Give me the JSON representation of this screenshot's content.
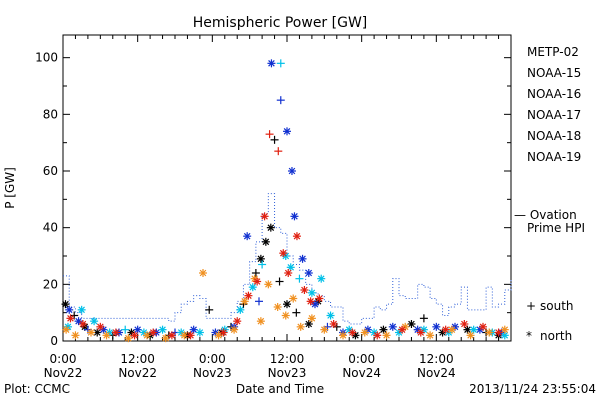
{
  "chart_data": {
    "type": "scatter",
    "title": "Hemispheric Power [GW]",
    "xlabel": "Date and Time",
    "ylabel": "P [GW]",
    "credit": "Plot: CCMC",
    "timestamp": "2013/11/24 23:55:04",
    "x_unit": "hours from 2013-11-22 00:00",
    "xlim": [
      0,
      72
    ],
    "ylim": [
      0,
      108
    ],
    "x_ticks": [
      {
        "x": 0,
        "line1": "0:00",
        "line2": "Nov22"
      },
      {
        "x": 12,
        "line1": "12:00",
        "line2": "Nov22"
      },
      {
        "x": 24,
        "line1": "0:00",
        "line2": "Nov23"
      },
      {
        "x": 36,
        "line1": "12:00",
        "line2": "Nov23"
      },
      {
        "x": 48,
        "line1": "0:00",
        "line2": "Nov24"
      },
      {
        "x": 60,
        "line1": "12:00",
        "line2": "Nov24"
      }
    ],
    "y_ticks": [
      0,
      20,
      40,
      60,
      80,
      100
    ],
    "legend_position": "right",
    "series": [
      {
        "name": "METP-02",
        "color": "#000000",
        "points": [
          {
            "x": 0.4,
            "y": 13,
            "m": "*"
          },
          {
            "x": 1.8,
            "y": 9,
            "m": "+"
          },
          {
            "x": 3.5,
            "y": 5,
            "m": "*"
          },
          {
            "x": 5.5,
            "y": 3,
            "m": "*"
          },
          {
            "x": 8,
            "y": 2,
            "m": "+"
          },
          {
            "x": 11,
            "y": 3,
            "m": "*"
          },
          {
            "x": 14,
            "y": 2,
            "m": "*"
          },
          {
            "x": 17,
            "y": 2,
            "m": "+"
          },
          {
            "x": 20,
            "y": 2,
            "m": "*"
          },
          {
            "x": 23.5,
            "y": 11,
            "m": "+"
          },
          {
            "x": 25.5,
            "y": 3,
            "m": "*"
          },
          {
            "x": 27,
            "y": 5,
            "m": "+"
          },
          {
            "x": 29,
            "y": 13,
            "m": "+"
          },
          {
            "x": 31,
            "y": 24,
            "m": "+"
          },
          {
            "x": 31.8,
            "y": 29,
            "m": "*"
          },
          {
            "x": 32.6,
            "y": 35,
            "m": "*"
          },
          {
            "x": 33.4,
            "y": 40,
            "m": "*"
          },
          {
            "x": 34,
            "y": 71,
            "m": "+"
          },
          {
            "x": 34.8,
            "y": 21,
            "m": "+"
          },
          {
            "x": 36,
            "y": 13,
            "m": "*"
          },
          {
            "x": 37.5,
            "y": 10,
            "m": "+"
          },
          {
            "x": 39.5,
            "y": 6,
            "m": "*"
          },
          {
            "x": 41,
            "y": 14,
            "m": "*"
          },
          {
            "x": 44,
            "y": 5,
            "m": "+"
          },
          {
            "x": 47,
            "y": 2,
            "m": "*"
          },
          {
            "x": 51.5,
            "y": 4,
            "m": "*"
          },
          {
            "x": 56,
            "y": 6,
            "m": "*"
          },
          {
            "x": 58,
            "y": 8,
            "m": "+"
          },
          {
            "x": 61,
            "y": 3,
            "m": "*"
          },
          {
            "x": 65,
            "y": 4,
            "m": "*"
          },
          {
            "x": 68,
            "y": 3,
            "m": "+"
          },
          {
            "x": 70,
            "y": 2,
            "m": "*"
          }
        ]
      },
      {
        "name": "NOAA-15",
        "color": "#1030d0",
        "points": [
          {
            "x": 1,
            "y": 11,
            "m": "*"
          },
          {
            "x": 2.5,
            "y": 7,
            "m": "*"
          },
          {
            "x": 4,
            "y": 4,
            "m": "+"
          },
          {
            "x": 6.5,
            "y": 4,
            "m": "*"
          },
          {
            "x": 9,
            "y": 3,
            "m": "*"
          },
          {
            "x": 12,
            "y": 4,
            "m": "*"
          },
          {
            "x": 15,
            "y": 3,
            "m": "*"
          },
          {
            "x": 18,
            "y": 3,
            "m": "+"
          },
          {
            "x": 21,
            "y": 4,
            "m": "*"
          },
          {
            "x": 24.5,
            "y": 3,
            "m": "*"
          },
          {
            "x": 27.5,
            "y": 5,
            "m": "*"
          },
          {
            "x": 29.6,
            "y": 37,
            "m": "*"
          },
          {
            "x": 31.5,
            "y": 14,
            "m": "+"
          },
          {
            "x": 33.5,
            "y": 98,
            "m": "*"
          },
          {
            "x": 35,
            "y": 85,
            "m": "+"
          },
          {
            "x": 36,
            "y": 74,
            "m": "*"
          },
          {
            "x": 36.8,
            "y": 60,
            "m": "*"
          },
          {
            "x": 37.2,
            "y": 44,
            "m": "*"
          },
          {
            "x": 38.5,
            "y": 29,
            "m": "*"
          },
          {
            "x": 39.5,
            "y": 24,
            "m": "*"
          },
          {
            "x": 40.5,
            "y": 13,
            "m": "*"
          },
          {
            "x": 42.5,
            "y": 5,
            "m": "+"
          },
          {
            "x": 45,
            "y": 3,
            "m": "*"
          },
          {
            "x": 49,
            "y": 4,
            "m": "*"
          },
          {
            "x": 53,
            "y": 5,
            "m": "*"
          },
          {
            "x": 57,
            "y": 4,
            "m": "*"
          },
          {
            "x": 60,
            "y": 5,
            "m": "*"
          },
          {
            "x": 63,
            "y": 5,
            "m": "*"
          },
          {
            "x": 67,
            "y": 4,
            "m": "*"
          },
          {
            "x": 70.5,
            "y": 3,
            "m": "*"
          }
        ]
      },
      {
        "name": "NOAA-16",
        "color": "#00c0e8",
        "points": [
          {
            "x": 0.8,
            "y": 5,
            "m": "*"
          },
          {
            "x": 3,
            "y": 11,
            "m": "*"
          },
          {
            "x": 5,
            "y": 7,
            "m": "*"
          },
          {
            "x": 7.5,
            "y": 3,
            "m": "*"
          },
          {
            "x": 10,
            "y": 4,
            "m": "+"
          },
          {
            "x": 13,
            "y": 3,
            "m": "*"
          },
          {
            "x": 16,
            "y": 4,
            "m": "*"
          },
          {
            "x": 19,
            "y": 3,
            "m": "*"
          },
          {
            "x": 22,
            "y": 3,
            "m": "*"
          },
          {
            "x": 26,
            "y": 4,
            "m": "*"
          },
          {
            "x": 28.5,
            "y": 11,
            "m": "*"
          },
          {
            "x": 30.5,
            "y": 19,
            "m": "*"
          },
          {
            "x": 32,
            "y": 27,
            "m": "+"
          },
          {
            "x": 35,
            "y": 98,
            "m": "+"
          },
          {
            "x": 35.8,
            "y": 30,
            "m": "*"
          },
          {
            "x": 36.6,
            "y": 26,
            "m": "*"
          },
          {
            "x": 38,
            "y": 22,
            "m": "+"
          },
          {
            "x": 40,
            "y": 17,
            "m": "*"
          },
          {
            "x": 41.5,
            "y": 22,
            "m": "*"
          },
          {
            "x": 43,
            "y": 9,
            "m": "*"
          },
          {
            "x": 46,
            "y": 4,
            "m": "*"
          },
          {
            "x": 50,
            "y": 3,
            "m": "*"
          },
          {
            "x": 54,
            "y": 3,
            "m": "*"
          },
          {
            "x": 58,
            "y": 4,
            "m": "*"
          },
          {
            "x": 62,
            "y": 3,
            "m": "*"
          },
          {
            "x": 66,
            "y": 4,
            "m": "*"
          },
          {
            "x": 69,
            "y": 3,
            "m": "*"
          },
          {
            "x": 71,
            "y": 2,
            "m": "*"
          }
        ]
      },
      {
        "name": "NOAA-17",
        "color": "#20e070",
        "points": []
      },
      {
        "name": "NOAA-18",
        "color": "#f09020",
        "points": [
          {
            "x": 0.5,
            "y": 4,
            "m": "*"
          },
          {
            "x": 2,
            "y": 2,
            "m": "*"
          },
          {
            "x": 4.5,
            "y": 3,
            "m": "*"
          },
          {
            "x": 7,
            "y": 2,
            "m": "*"
          },
          {
            "x": 10.5,
            "y": 1,
            "m": "*"
          },
          {
            "x": 13.5,
            "y": 2,
            "m": "*"
          },
          {
            "x": 16.5,
            "y": 1,
            "m": "*"
          },
          {
            "x": 19.5,
            "y": 2,
            "m": "*"
          },
          {
            "x": 22.5,
            "y": 24,
            "m": "*"
          },
          {
            "x": 25,
            "y": 2,
            "m": "*"
          },
          {
            "x": 27.5,
            "y": 4,
            "m": "*"
          },
          {
            "x": 29.2,
            "y": 14,
            "m": "*"
          },
          {
            "x": 30.8,
            "y": 22,
            "m": "*"
          },
          {
            "x": 31.8,
            "y": 7,
            "m": "*"
          },
          {
            "x": 33,
            "y": 20,
            "m": "*"
          },
          {
            "x": 34.5,
            "y": 12,
            "m": "*"
          },
          {
            "x": 35.8,
            "y": 9,
            "m": "*"
          },
          {
            "x": 37,
            "y": 15,
            "m": "*"
          },
          {
            "x": 38.2,
            "y": 5,
            "m": "*"
          },
          {
            "x": 40,
            "y": 8,
            "m": "*"
          },
          {
            "x": 42,
            "y": 4,
            "m": "*"
          },
          {
            "x": 45,
            "y": 2,
            "m": "*"
          },
          {
            "x": 48.5,
            "y": 3,
            "m": "*"
          },
          {
            "x": 52,
            "y": 2,
            "m": "*"
          },
          {
            "x": 55,
            "y": 5,
            "m": "*"
          },
          {
            "x": 59,
            "y": 2,
            "m": "*"
          },
          {
            "x": 62.5,
            "y": 4,
            "m": "*"
          },
          {
            "x": 65.5,
            "y": 2,
            "m": "*"
          },
          {
            "x": 68.5,
            "y": 3,
            "m": "*"
          },
          {
            "x": 71,
            "y": 4,
            "m": "*"
          }
        ]
      },
      {
        "name": "NOAA-19",
        "color": "#e02010",
        "points": [
          {
            "x": 1.2,
            "y": 8,
            "m": "*"
          },
          {
            "x": 3.2,
            "y": 6,
            "m": "*"
          },
          {
            "x": 6,
            "y": 5,
            "m": "*"
          },
          {
            "x": 8.5,
            "y": 3,
            "m": "*"
          },
          {
            "x": 11.5,
            "y": 2,
            "m": "*"
          },
          {
            "x": 14.5,
            "y": 3,
            "m": "*"
          },
          {
            "x": 17.5,
            "y": 2,
            "m": "*"
          },
          {
            "x": 20.5,
            "y": 2,
            "m": "*"
          },
          {
            "x": 25.8,
            "y": 3,
            "m": "*"
          },
          {
            "x": 28,
            "y": 7,
            "m": "*"
          },
          {
            "x": 29.8,
            "y": 16,
            "m": "*"
          },
          {
            "x": 31.2,
            "y": 21,
            "m": "*"
          },
          {
            "x": 32.4,
            "y": 44,
            "m": "*"
          },
          {
            "x": 33.2,
            "y": 73,
            "m": "+"
          },
          {
            "x": 34.6,
            "y": 67,
            "m": "+"
          },
          {
            "x": 35.4,
            "y": 31,
            "m": "*"
          },
          {
            "x": 36.2,
            "y": 24,
            "m": "*"
          },
          {
            "x": 37.6,
            "y": 37,
            "m": "*"
          },
          {
            "x": 38.8,
            "y": 18,
            "m": "*"
          },
          {
            "x": 39.8,
            "y": 14,
            "m": "*"
          },
          {
            "x": 41.2,
            "y": 15,
            "m": "*"
          },
          {
            "x": 43.5,
            "y": 6,
            "m": "*"
          },
          {
            "x": 46.5,
            "y": 3,
            "m": "*"
          },
          {
            "x": 50.5,
            "y": 2,
            "m": "*"
          },
          {
            "x": 54.5,
            "y": 4,
            "m": "*"
          },
          {
            "x": 57.5,
            "y": 3,
            "m": "*"
          },
          {
            "x": 61.5,
            "y": 4,
            "m": "*"
          },
          {
            "x": 64.5,
            "y": 6,
            "m": "*"
          },
          {
            "x": 67.5,
            "y": 5,
            "m": "*"
          },
          {
            "x": 70,
            "y": 3,
            "m": "*"
          }
        ]
      }
    ],
    "ovation": {
      "label_line1": "— Ovation",
      "label_line2": "Prime HPI",
      "color": "#3060d8",
      "style": "dotted-step",
      "x": [
        0,
        1,
        2,
        3,
        4,
        5,
        6,
        7,
        8,
        9,
        10,
        11,
        12,
        13,
        14,
        15,
        16,
        17,
        18,
        19,
        20,
        21,
        22,
        23,
        24,
        25,
        26,
        27,
        28,
        29,
        30,
        31,
        32,
        33,
        34,
        35,
        36,
        37,
        38,
        39,
        40,
        41,
        42,
        43,
        44,
        45,
        46,
        47,
        48,
        49,
        50,
        51,
        52,
        53,
        54,
        55,
        56,
        57,
        58,
        59,
        60,
        61,
        62,
        63,
        64,
        65,
        66,
        67,
        68,
        69,
        70,
        71,
        72
      ],
      "y": [
        23,
        12,
        10,
        8,
        8,
        8,
        8,
        8,
        8,
        8,
        8,
        8,
        8,
        8,
        8,
        8,
        8,
        7,
        10,
        13,
        14,
        16,
        15,
        8,
        8,
        8,
        8,
        10,
        14,
        20,
        28,
        35,
        45,
        52,
        40,
        38,
        30,
        27,
        25,
        20,
        17,
        16,
        14,
        12,
        12,
        7,
        6,
        6,
        8,
        8,
        12,
        11,
        13,
        22,
        16,
        15,
        15,
        20,
        19,
        15,
        13,
        9,
        12,
        13,
        19,
        11,
        11,
        11,
        19,
        12,
        13,
        18,
        22
      ]
    },
    "marker_legend": [
      {
        "symbol": "+",
        "label": "south"
      },
      {
        "symbol": "*",
        "label": "north"
      }
    ]
  }
}
